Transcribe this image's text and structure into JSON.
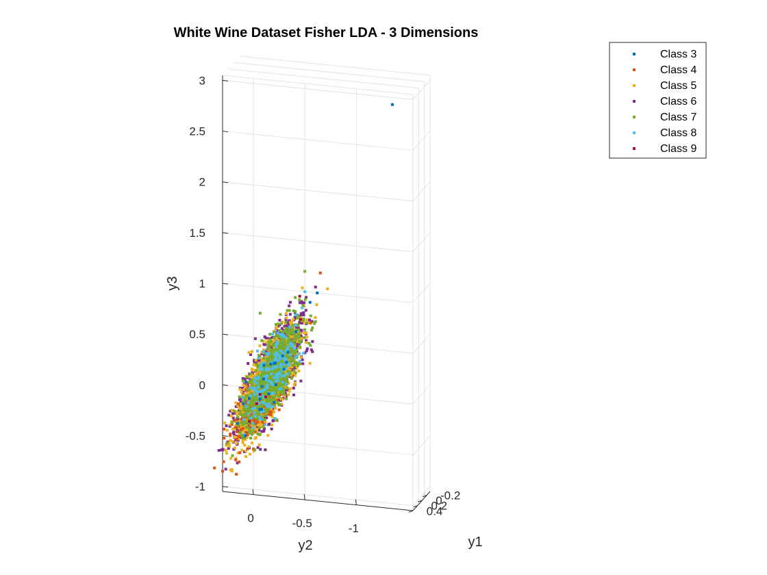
{
  "chart_data": {
    "type": "scatter",
    "title": "White Wine Dataset Fisher LDA - 3 Dimensions",
    "xlabel": "y1",
    "ylabel": "y2",
    "zlabel": "y3",
    "x_ticks": [
      "-0.2",
      "0",
      "0.2",
      "0.4"
    ],
    "y_ticks": [
      "0",
      "-0.5",
      "-1"
    ],
    "z_ticks": [
      "-1",
      "-0.5",
      "0",
      "0.5",
      "1",
      "1.5",
      "2",
      "2.5",
      "3"
    ],
    "zlim": [
      -1.05,
      3.05
    ],
    "grid": true,
    "legend_position": "top-right",
    "series": [
      {
        "name": "Class 3",
        "color": "#0072BD",
        "points_approx": [
          {
            "y2": -0.08,
            "y3": -0.2
          },
          {
            "y2": -0.1,
            "y3": 0.1
          },
          {
            "y2": -0.55,
            "y3": 0.9
          },
          {
            "y2": -0.62,
            "y3": 1.0
          },
          {
            "y2": -1.35,
            "y3": 2.93
          }
        ]
      },
      {
        "name": "Class 4",
        "color": "#D95319",
        "points_approx": [
          {
            "y2": 0.1,
            "y3": -0.5
          },
          {
            "y2": 0.3,
            "y3": -0.85
          },
          {
            "y2": 0.0,
            "y3": -0.6
          },
          {
            "y2": -0.65,
            "y3": 1.2
          },
          {
            "y2": 0.05,
            "y3": -0.3
          }
        ]
      },
      {
        "name": "Class 5",
        "color": "#EDB120",
        "points_approx": [
          {
            "y2": -0.1,
            "y3": 0.0
          },
          {
            "y2": -0.2,
            "y3": 0.3
          },
          {
            "y2": -0.05,
            "y3": -0.3
          },
          {
            "y2": -0.55,
            "y3": 0.3
          },
          {
            "y2": -0.72,
            "y3": 1.05
          }
        ]
      },
      {
        "name": "Class 6",
        "color": "#7E2F8E",
        "points_approx": [
          {
            "y2": -0.1,
            "y3": 0.1
          },
          {
            "y2": -0.25,
            "y3": 0.5
          },
          {
            "y2": 0.0,
            "y3": -0.3
          },
          {
            "y2": -0.35,
            "y3": 0.7
          }
        ]
      },
      {
        "name": "Class 7",
        "color": "#77AC30",
        "points_approx": [
          {
            "y2": -0.1,
            "y3": 0.3
          },
          {
            "y2": -0.35,
            "y3": 0.8
          },
          {
            "y2": -0.5,
            "y3": 1.2
          },
          {
            "y2": 0.0,
            "y3": -0.2
          }
        ]
      },
      {
        "name": "Class 8",
        "color": "#4DBEEE",
        "points_approx": [
          {
            "y2": -0.05,
            "y3": 0.3
          },
          {
            "y2": -0.5,
            "y3": 1.0
          },
          {
            "y2": 0.0,
            "y3": 0.0
          }
        ]
      },
      {
        "name": "Class 9",
        "color": "#A2142F",
        "points_approx": [
          {
            "y2": -0.45,
            "y3": 0.95
          }
        ]
      }
    ]
  }
}
